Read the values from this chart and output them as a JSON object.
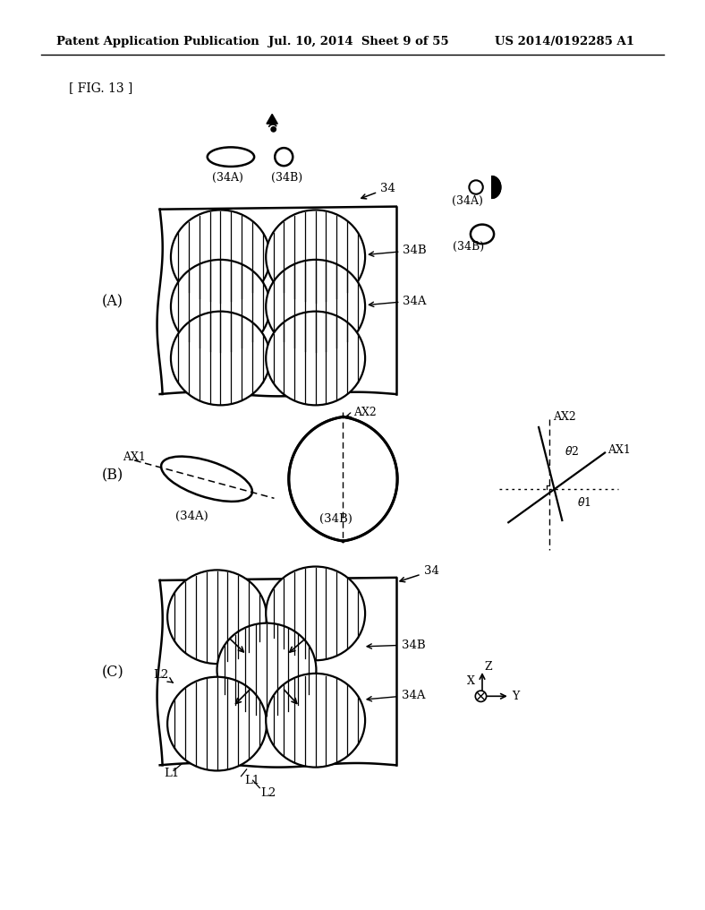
{
  "bg_color": "#ffffff",
  "line_color": "#000000",
  "header_left": "Patent Application Publication",
  "header_mid": "Jul. 10, 2014  Sheet 9 of 55",
  "header_right": "US 2014/0192285 A1",
  "fig_label": "[ FIG. 13 ]"
}
